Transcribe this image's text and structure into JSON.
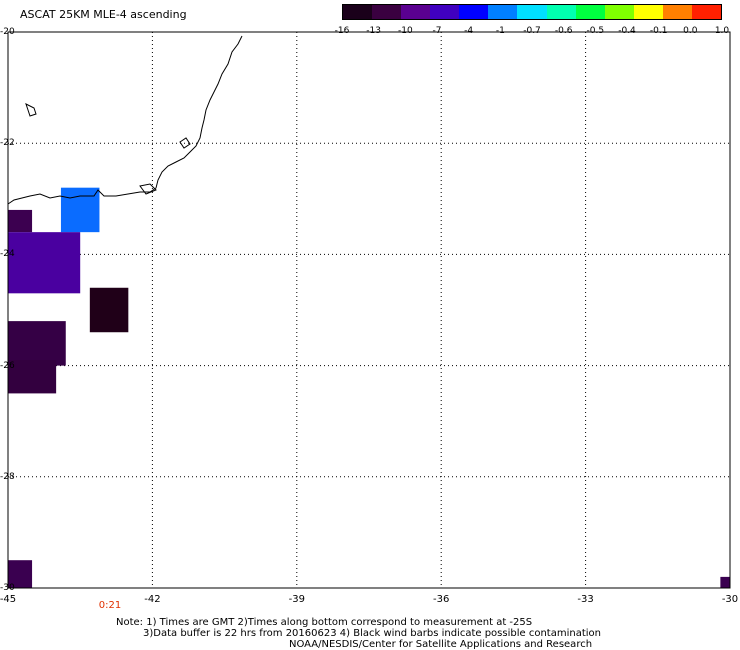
{
  "title": "ASCAT 25KM MLE-4 ascending",
  "colorbar": {
    "labels": [
      "-16",
      "-13",
      "-10",
      "-7",
      "-4",
      "-1",
      "-0.7",
      "-0.6",
      "-0.5",
      "-0.4",
      "-0.1",
      "0.0",
      "1.0"
    ],
    "colors": [
      "#1a001a",
      "#3a0040",
      "#5a0090",
      "#4000c0",
      "#0000ff",
      "#0080ff",
      "#00e0ff",
      "#00ffb0",
      "#00ff40",
      "#80ff00",
      "#ffff00",
      "#ff8000",
      "#ff2000"
    ]
  },
  "axes": {
    "lat_labels": [
      "-20",
      "-22",
      "-24",
      "-26",
      "-28",
      "-30"
    ],
    "lon_labels": [
      "-45",
      "-42",
      "-39",
      "-36",
      "-33",
      "-30"
    ],
    "lat_range": [
      -30,
      -20
    ],
    "lon_range": [
      -45,
      -30
    ]
  },
  "time_label": "0:21",
  "notes": {
    "line1": "Note: 1) Times are GMT 2)Times along bottom correspond to measurement at -25S",
    "line2": "3)Data buffer is 22 hrs from 20160623 4) Black wind barbs indicate possible contamination",
    "line3": "NOAA/NESDIS/Center for Satellite Applications and Research"
  },
  "data_cells": [
    {
      "lon_min": -45,
      "lon_max": -44.5,
      "lat_min": -23.6,
      "lat_max": -23.2,
      "value": -13,
      "color": "#3c0050"
    },
    {
      "lon_min": -43.9,
      "lon_max": -43.1,
      "lat_min": -23.6,
      "lat_max": -22.8,
      "value": -4,
      "color": "#0a6cff"
    },
    {
      "lon_min": -45,
      "lon_max": -43.5,
      "lat_min": -24.7,
      "lat_max": -23.6,
      "value": -10,
      "color": "#4a00a0"
    },
    {
      "lon_min": -43.3,
      "lon_max": -42.5,
      "lat_min": -25.4,
      "lat_max": -24.6,
      "value": -16,
      "color": "#200018"
    },
    {
      "lon_min": -45,
      "lon_max": -43.8,
      "lat_min": -26.0,
      "lat_max": -25.2,
      "value": -13,
      "color": "#350045"
    },
    {
      "lon_min": -45,
      "lon_max": -44.0,
      "lat_min": -26.5,
      "lat_max": -25.9,
      "value": -13,
      "color": "#33003f"
    },
    {
      "lon_min": -45,
      "lon_max": -44.5,
      "lat_min": -30.0,
      "lat_max": -29.5,
      "value": -13,
      "color": "#3a0050"
    },
    {
      "lon_min": -30.2,
      "lon_max": -30.0,
      "lat_min": -30.0,
      "lat_max": -29.8,
      "value": -13,
      "color": "#3a0050"
    }
  ]
}
